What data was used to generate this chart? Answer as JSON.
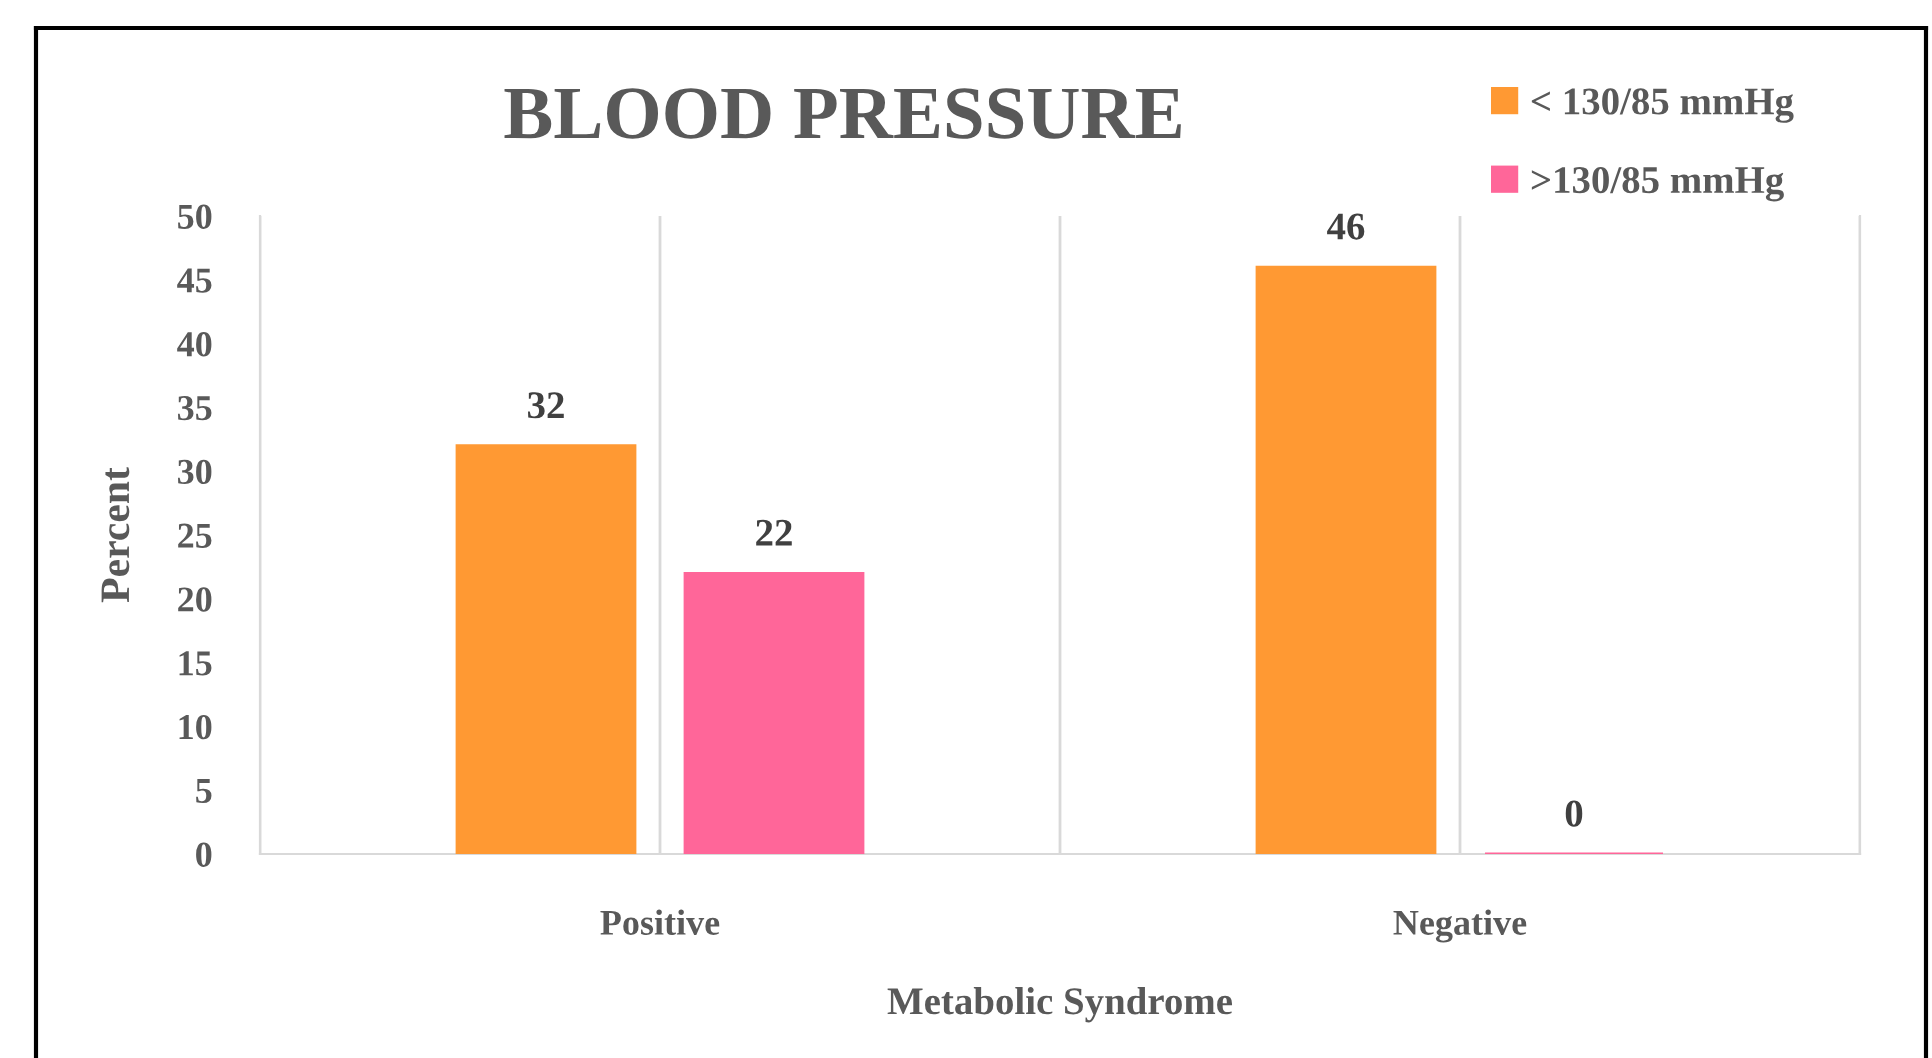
{
  "chart_data": {
    "type": "bar",
    "title": "BLOOD PRESSURE",
    "xlabel": "Metabolic Syndrome",
    "ylabel": "Percent",
    "categories": [
      "Positive",
      "Negative"
    ],
    "series": [
      {
        "name": "< 130/85 mmHg",
        "color": "#ff9933",
        "values": [
          32,
          46
        ]
      },
      {
        "name": ">130/85 mmHg",
        "color": "#ff6699",
        "values": [
          22,
          0
        ]
      }
    ],
    "ylim": [
      0,
      50
    ],
    "yticks": [
      0,
      5,
      10,
      15,
      20,
      25,
      30,
      35,
      40,
      45,
      50
    ],
    "grid": "x",
    "legend": "top right",
    "data_labels": true
  }
}
